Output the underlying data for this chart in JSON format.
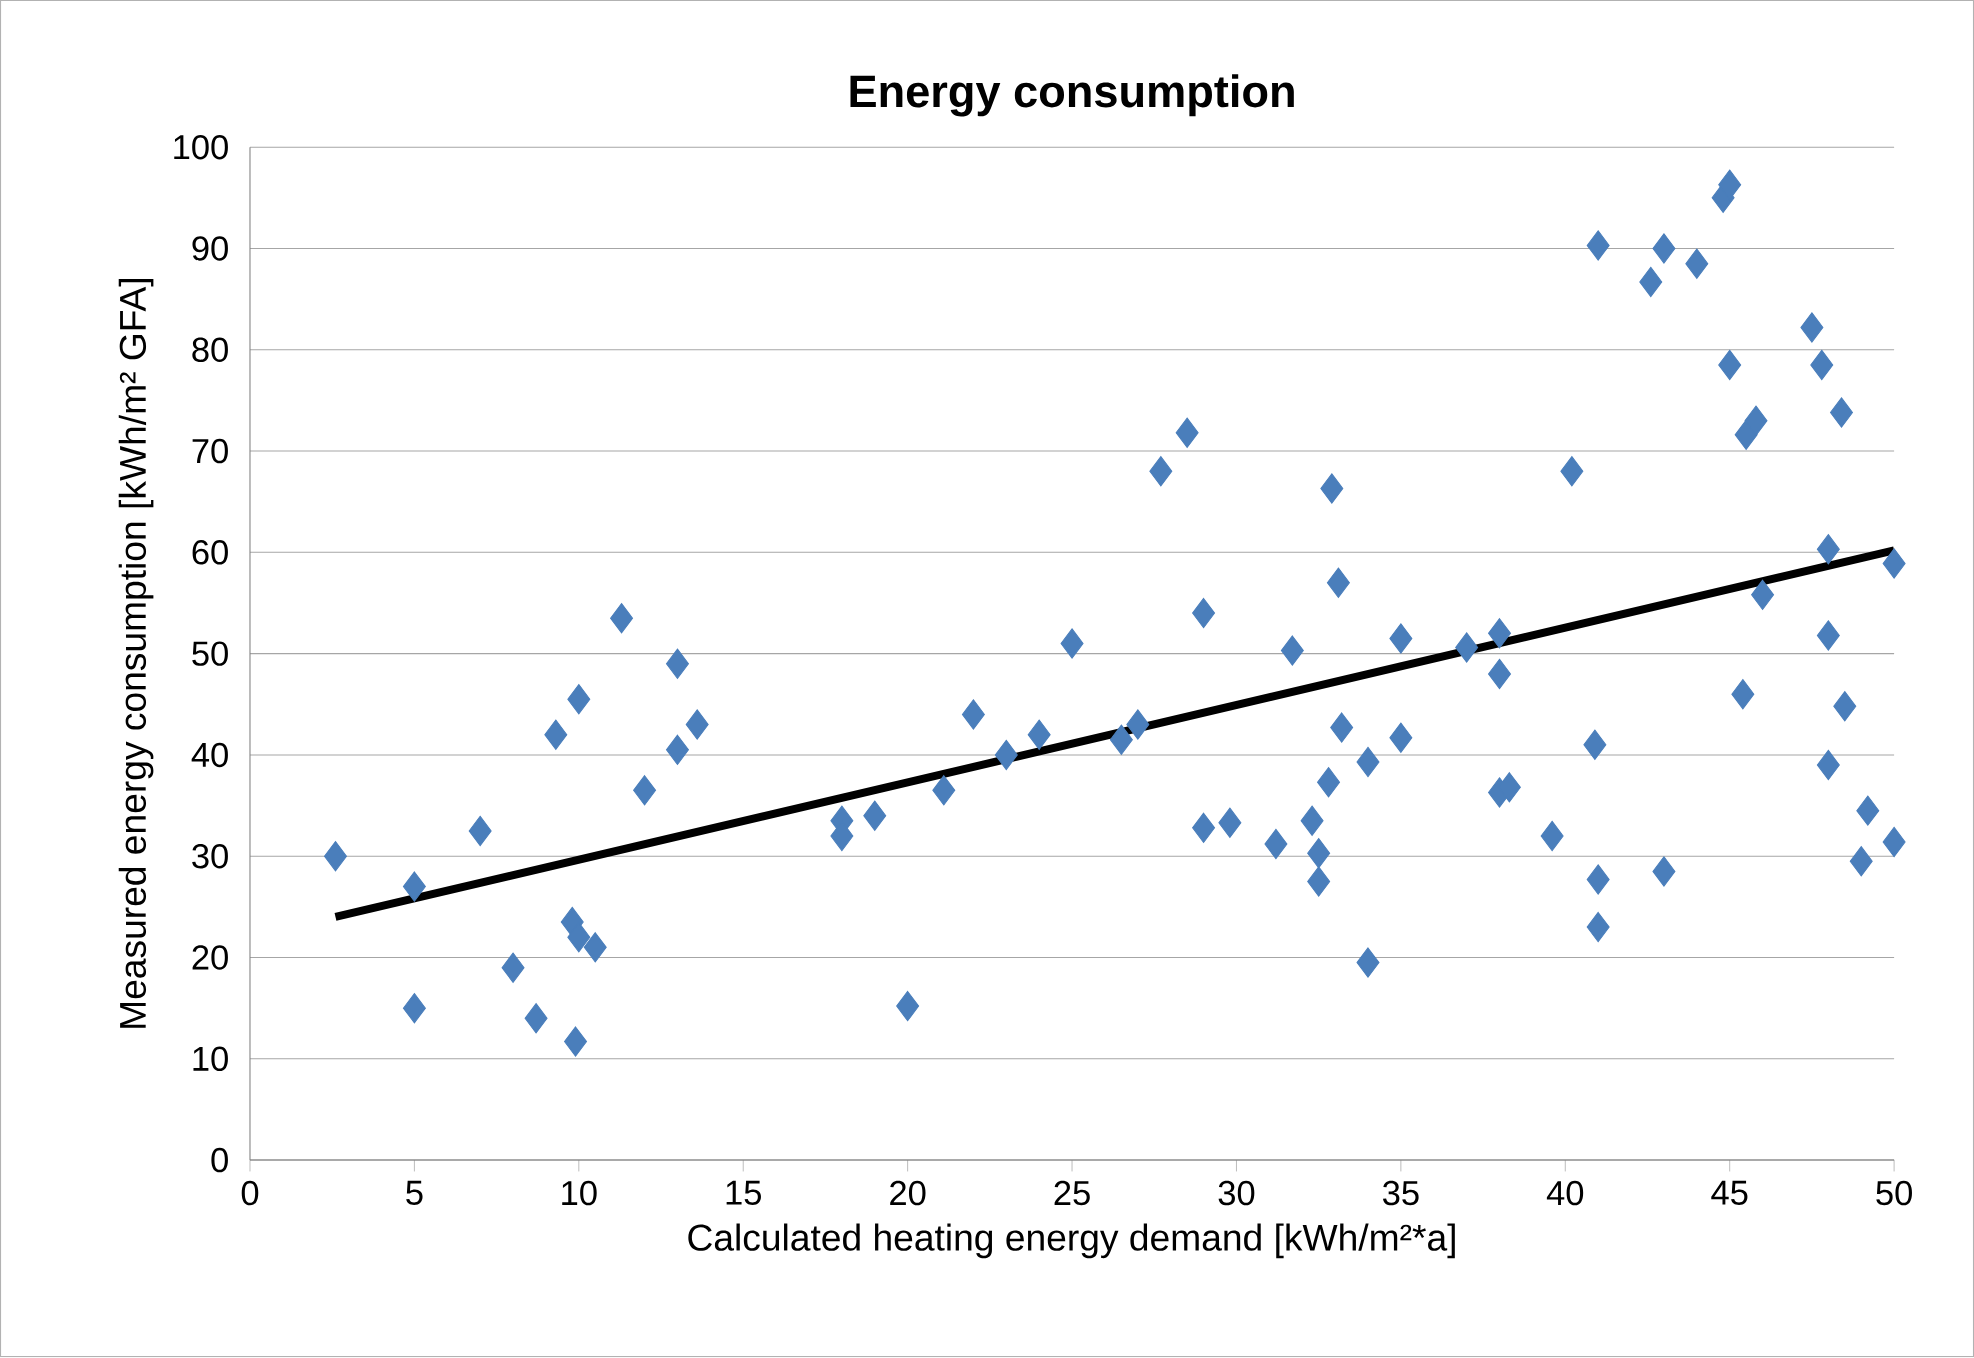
{
  "chart_data": {
    "type": "scatter",
    "title": "Energy consumption",
    "xlabel": "Calculated heating energy demand [kWh/m²*a]",
    "ylabel": "Measured energy consumption [kWh/m² GFA]",
    "xlim": [
      0,
      50
    ],
    "xticks": [
      0,
      5,
      10,
      15,
      20,
      25,
      30,
      35,
      40,
      45,
      50
    ],
    "ylim": [
      0,
      100
    ],
    "yticks": [
      0,
      10,
      20,
      30,
      40,
      50,
      60,
      70,
      80,
      90,
      100
    ],
    "grid": "y",
    "series": [
      {
        "marker": "diamond",
        "color": "#4a7ebb",
        "x": [
          2.6,
          5,
          5,
          7,
          8,
          8.7,
          9.3,
          9.8,
          9.9,
          10,
          10,
          10.5,
          11.3,
          12,
          13,
          13,
          13.6,
          18,
          18,
          19,
          20,
          21.1,
          22,
          23,
          24,
          25,
          26.5,
          27,
          27.7,
          28.5,
          29,
          29,
          29.8,
          31.2,
          31.7,
          32.3,
          32.5,
          32.5,
          32.8,
          32.9,
          33.1,
          33.2,
          34,
          34,
          35,
          35,
          37,
          38,
          38,
          38,
          38.3,
          39.6,
          40.2,
          40.9,
          41,
          41,
          41,
          42.6,
          43,
          43,
          44,
          44.8,
          45,
          45,
          45.4,
          45.5,
          45.8,
          46,
          47.5,
          47.8,
          48,
          48,
          48,
          48.4,
          48.5,
          49,
          49.2,
          50,
          50
        ],
        "values": [
          30,
          27,
          15,
          32.5,
          19,
          14,
          42,
          23.5,
          11.7,
          45.5,
          22,
          21,
          53.5,
          36.5,
          49,
          40.5,
          43,
          33.5,
          32,
          34,
          15.2,
          36.5,
          44,
          40,
          42,
          51,
          41.5,
          43,
          68,
          71.8,
          54,
          32.8,
          33.3,
          31.2,
          50.3,
          33.5,
          30.3,
          27.5,
          37.3,
          66.3,
          57,
          42.7,
          39.3,
          19.5,
          51.5,
          41.7,
          50.6,
          52,
          48,
          36.3,
          36.8,
          32,
          68,
          41,
          90.3,
          27.7,
          23,
          86.7,
          90,
          28.5,
          88.5,
          95,
          96.3,
          78.5,
          46,
          71.6,
          73,
          55.8,
          82.2,
          78.5,
          60.3,
          51.8,
          39,
          73.8,
          44.8,
          29.5,
          34.5,
          58.9,
          31.4
        ]
      },
      {
        "type": "line",
        "color": "#000000",
        "marker": "none",
        "line_style": "solid",
        "x": [
          2.6,
          50
        ],
        "values": [
          24,
          60.2
        ]
      }
    ]
  }
}
